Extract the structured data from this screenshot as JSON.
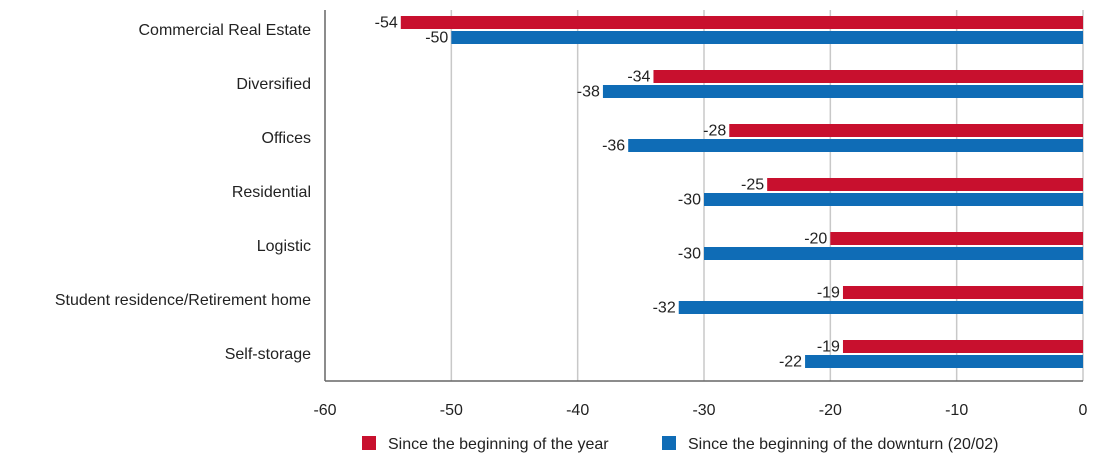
{
  "chart_data": {
    "type": "bar",
    "orientation": "horizontal",
    "categories": [
      "Commercial Real Estate",
      "Diversified",
      "Offices",
      "Residential",
      "Logistic",
      "Student residence/Retirement home",
      "Self-storage"
    ],
    "series": [
      {
        "name": "Since the beginning of the year",
        "color": "#c8102e",
        "values": [
          -54,
          -34,
          -28,
          -25,
          -20,
          -19,
          -19
        ]
      },
      {
        "name": "Since the beginning of the downturn (20/02)",
        "color": "#0f6cb6",
        "values": [
          -50,
          -38,
          -36,
          -30,
          -30,
          -32,
          -22
        ]
      }
    ],
    "xlim": [
      -60,
      0
    ],
    "x_ticks": [
      -60,
      -50,
      -40,
      -30,
      -20,
      -10,
      0
    ],
    "grid": "vertical",
    "legend_position": "bottom"
  }
}
